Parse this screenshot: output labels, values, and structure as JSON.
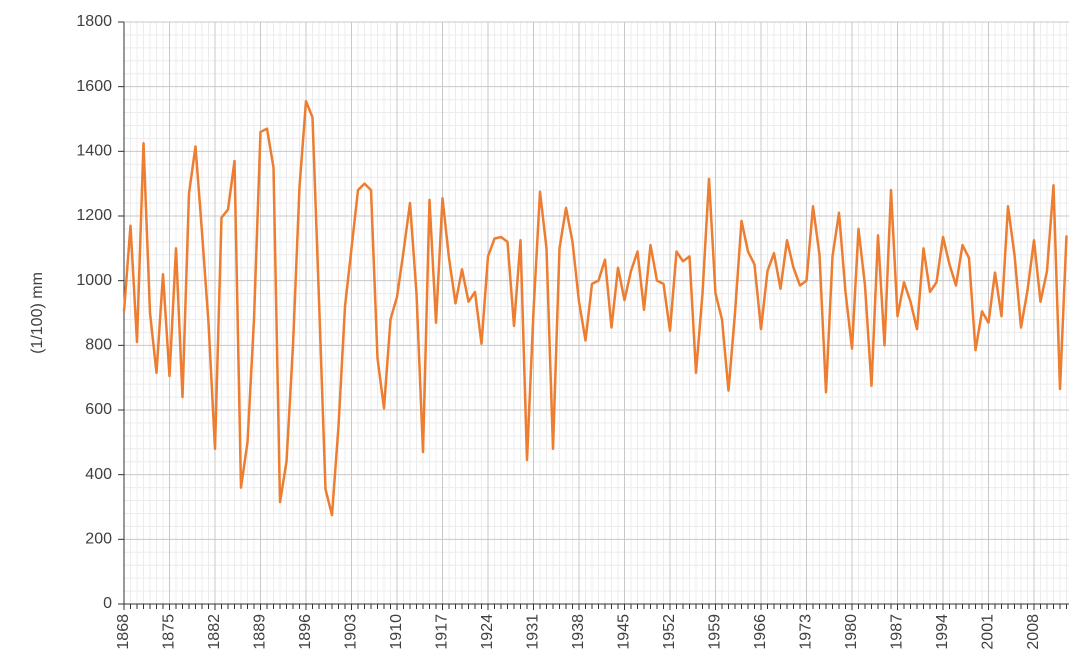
{
  "chart_data": {
    "type": "line",
    "y_label": "(1/100) mm",
    "x": [
      1868,
      1869,
      1870,
      1871,
      1872,
      1873,
      1874,
      1875,
      1876,
      1877,
      1878,
      1879,
      1880,
      1881,
      1882,
      1883,
      1884,
      1885,
      1886,
      1887,
      1888,
      1889,
      1890,
      1891,
      1892,
      1893,
      1894,
      1895,
      1896,
      1897,
      1898,
      1899,
      1900,
      1901,
      1902,
      1903,
      1904,
      1905,
      1906,
      1907,
      1908,
      1909,
      1910,
      1911,
      1912,
      1913,
      1914,
      1915,
      1916,
      1917,
      1918,
      1919,
      1920,
      1921,
      1922,
      1923,
      1924,
      1925,
      1926,
      1927,
      1928,
      1929,
      1930,
      1931,
      1932,
      1933,
      1934,
      1935,
      1936,
      1937,
      1938,
      1939,
      1940,
      1941,
      1942,
      1943,
      1944,
      1945,
      1946,
      1947,
      1948,
      1949,
      1950,
      1951,
      1952,
      1953,
      1954,
      1955,
      1956,
      1957,
      1958,
      1959,
      1960,
      1961,
      1962,
      1963,
      1964,
      1965,
      1966,
      1967,
      1968,
      1969,
      1970,
      1971,
      1972,
      1973,
      1974,
      1975,
      1976,
      1977,
      1978,
      1979,
      1980,
      1981,
      1982,
      1983,
      1984,
      1985,
      1986,
      1987,
      1988,
      1989,
      1990,
      1991,
      1992,
      1993,
      1994,
      1995,
      1996,
      1997,
      1998,
      1999,
      2000,
      2001,
      2002,
      2003,
      2004,
      2005,
      2006,
      2007,
      2008,
      2009,
      2010,
      2011,
      2012,
      2013
    ],
    "series": [
      {
        "color": "#ed7d31",
        "values": [
          905,
          1170,
          810,
          1425,
          900,
          715,
          1020,
          705,
          1100,
          640,
          1270,
          1415,
          1150,
          870,
          480,
          1195,
          1220,
          1370,
          360,
          500,
          880,
          1460,
          1470,
          1350,
          315,
          440,
          800,
          1290,
          1555,
          1505,
          940,
          355,
          275,
          550,
          920,
          1100,
          1280,
          1300,
          1280,
          760,
          605,
          880,
          950,
          1090,
          1240,
          960,
          470,
          1250,
          870,
          1255,
          1070,
          930,
          1035,
          935,
          965,
          805,
          1075,
          1130,
          1135,
          1120,
          860,
          1125,
          445,
          905,
          1275,
          1100,
          480,
          1100,
          1225,
          1120,
          935,
          815,
          990,
          1000,
          1065,
          855,
          1040,
          940,
          1030,
          1090,
          910,
          1110,
          1000,
          990,
          845,
          1090,
          1060,
          1075,
          715,
          960,
          1315,
          960,
          880,
          660,
          900,
          1185,
          1090,
          1050,
          850,
          1030,
          1085,
          975,
          1125,
          1040,
          985,
          1000,
          1230,
          1080,
          655,
          1075,
          1210,
          965,
          790,
          1160,
          985,
          675,
          1140,
          800,
          1280,
          890,
          995,
          935,
          850,
          1100,
          965,
          995,
          1135,
          1050,
          985,
          1110,
          1070,
          785,
          905,
          870,
          1025,
          890,
          1230,
          1080,
          855,
          970,
          1125,
          935,
          1030,
          1295,
          665,
          1140
        ]
      }
    ],
    "xlim": [
      1868,
      2013
    ],
    "xticks": [
      1868,
      1875,
      1882,
      1889,
      1896,
      1903,
      1910,
      1917,
      1924,
      1931,
      1938,
      1945,
      1952,
      1959,
      1966,
      1973,
      1980,
      1987,
      1994,
      2001,
      2008
    ],
    "ylim": [
      0,
      1800
    ],
    "yticks": [
      0,
      200,
      400,
      600,
      800,
      1000,
      1200,
      1400,
      1600,
      1800
    ],
    "grid": true
  }
}
